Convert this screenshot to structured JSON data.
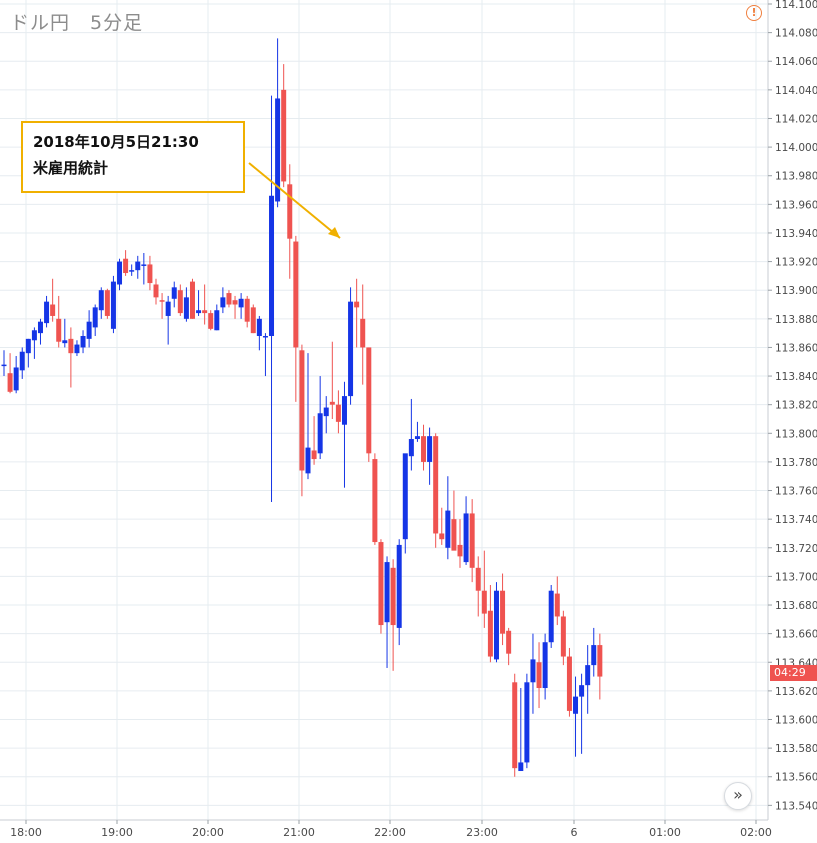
{
  "header": {
    "title": "ドル円　5分足"
  },
  "annotation": {
    "line1": "2018年10月5日21:30",
    "line2": "米雇用統計"
  },
  "price_tag": {
    "label": "04:29",
    "color": "#ef5350"
  },
  "icons": {
    "warning": "warning-circle-icon",
    "scroll": "double-chevron-right-icon"
  },
  "colors": {
    "up": "#1535e6",
    "down": "#ef5350",
    "grid": "#e6ecf0",
    "callout": "#f0b000"
  },
  "chart_data": {
    "type": "candlestick",
    "title": "ドル円　5分足",
    "y_ticks": [
      "114.100",
      "114.080",
      "114.060",
      "114.040",
      "114.020",
      "114.000",
      "113.980",
      "113.960",
      "113.940",
      "113.920",
      "113.900",
      "113.880",
      "113.860",
      "113.840",
      "113.820",
      "113.800",
      "113.780",
      "113.760",
      "113.740",
      "113.720",
      "113.700",
      "113.680",
      "113.660",
      "113.640",
      "113.620",
      "113.600",
      "113.580",
      "113.560",
      "113.540"
    ],
    "x_ticks": [
      "18:00",
      "19:00",
      "20:00",
      "21:00",
      "22:00",
      "23:00",
      "6",
      "01:00",
      "02:00"
    ],
    "ylim": [
      113.532,
      114.1
    ],
    "grid": true,
    "candles": [
      {
        "t": "17:50",
        "o": 113.848,
        "h": 113.858,
        "l": 113.84,
        "c": 113.848
      },
      {
        "t": "17:55",
        "o": 113.842,
        "h": 113.856,
        "l": 113.828,
        "c": 113.829
      },
      {
        "t": "18:00",
        "o": 113.83,
        "h": 113.854,
        "l": 113.828,
        "c": 113.846
      },
      {
        "t": "18:05",
        "o": 113.844,
        "h": 113.86,
        "l": 113.838,
        "c": 113.857
      },
      {
        "t": "18:10",
        "o": 113.856,
        "h": 113.866,
        "l": 113.846,
        "c": 113.866
      },
      {
        "t": "18:15",
        "o": 113.865,
        "h": 113.874,
        "l": 113.852,
        "c": 113.872
      },
      {
        "t": "18:20",
        "o": 113.87,
        "h": 113.88,
        "l": 113.862,
        "c": 113.878
      },
      {
        "t": "18:25",
        "o": 113.877,
        "h": 113.896,
        "l": 113.874,
        "c": 113.892
      },
      {
        "t": "18:30",
        "o": 113.89,
        "h": 113.908,
        "l": 113.878,
        "c": 113.882
      },
      {
        "t": "18:35",
        "o": 113.88,
        "h": 113.896,
        "l": 113.86,
        "c": 113.864
      },
      {
        "t": "18:40",
        "o": 113.863,
        "h": 113.88,
        "l": 113.86,
        "c": 113.865
      },
      {
        "t": "18:45",
        "o": 113.866,
        "h": 113.874,
        "l": 113.832,
        "c": 113.856
      },
      {
        "t": "18:50",
        "o": 113.856,
        "h": 113.865,
        "l": 113.854,
        "c": 113.862
      },
      {
        "t": "18:55",
        "o": 113.86,
        "h": 113.872,
        "l": 113.856,
        "c": 113.868
      },
      {
        "t": "19:00",
        "o": 113.866,
        "h": 113.886,
        "l": 113.86,
        "c": 113.878
      },
      {
        "t": "19:05",
        "o": 113.874,
        "h": 113.89,
        "l": 113.868,
        "c": 113.888
      },
      {
        "t": "19:10",
        "o": 113.886,
        "h": 113.902,
        "l": 113.88,
        "c": 113.9
      },
      {
        "t": "19:15",
        "o": 113.9,
        "h": 113.901,
        "l": 113.88,
        "c": 113.882
      },
      {
        "t": "19:20",
        "o": 113.873,
        "h": 113.91,
        "l": 113.87,
        "c": 113.906
      },
      {
        "t": "19:25",
        "o": 113.904,
        "h": 113.922,
        "l": 113.9,
        "c": 113.92
      },
      {
        "t": "19:30",
        "o": 113.922,
        "h": 113.928,
        "l": 113.91,
        "c": 113.912
      },
      {
        "t": "19:35",
        "o": 113.914,
        "h": 113.918,
        "l": 113.91,
        "c": 113.914
      },
      {
        "t": "19:40",
        "o": 113.914,
        "h": 113.924,
        "l": 113.908,
        "c": 113.92
      },
      {
        "t": "19:45",
        "o": 113.918,
        "h": 113.926,
        "l": 113.904,
        "c": 113.918
      },
      {
        "t": "19:50",
        "o": 113.918,
        "h": 113.924,
        "l": 113.9,
        "c": 113.905
      },
      {
        "t": "19:55",
        "o": 113.904,
        "h": 113.908,
        "l": 113.89,
        "c": 113.895
      },
      {
        "t": "20:00",
        "o": 113.893,
        "h": 113.898,
        "l": 113.88,
        "c": 113.892
      },
      {
        "t": "20:05",
        "o": 113.882,
        "h": 113.896,
        "l": 113.862,
        "c": 113.892
      },
      {
        "t": "20:10",
        "o": 113.894,
        "h": 113.906,
        "l": 113.888,
        "c": 113.902
      },
      {
        "t": "20:15",
        "o": 113.9,
        "h": 113.904,
        "l": 113.882,
        "c": 113.884
      },
      {
        "t": "20:20",
        "o": 113.88,
        "h": 113.902,
        "l": 113.878,
        "c": 113.895
      },
      {
        "t": "20:25",
        "o": 113.906,
        "h": 113.908,
        "l": 113.88,
        "c": 113.88
      },
      {
        "t": "20:30",
        "o": 113.884,
        "h": 113.9,
        "l": 113.882,
        "c": 113.886
      },
      {
        "t": "20:35",
        "o": 113.886,
        "h": 113.904,
        "l": 113.876,
        "c": 113.884
      },
      {
        "t": "20:40",
        "o": 113.884,
        "h": 113.886,
        "l": 113.872,
        "c": 113.873
      },
      {
        "t": "20:45",
        "o": 113.872,
        "h": 113.89,
        "l": 113.872,
        "c": 113.886
      },
      {
        "t": "20:50",
        "o": 113.888,
        "h": 113.902,
        "l": 113.884,
        "c": 113.895
      },
      {
        "t": "20:55",
        "o": 113.898,
        "h": 113.9,
        "l": 113.888,
        "c": 113.89
      },
      {
        "t": "21:00",
        "o": 113.893,
        "h": 113.896,
        "l": 113.88,
        "c": 113.89
      },
      {
        "t": "21:05",
        "o": 113.888,
        "h": 113.898,
        "l": 113.88,
        "c": 113.894
      },
      {
        "t": "21:10",
        "o": 113.894,
        "h": 113.896,
        "l": 113.874,
        "c": 113.878
      },
      {
        "t": "21:15",
        "o": 113.888,
        "h": 113.89,
        "l": 113.87,
        "c": 113.87
      },
      {
        "t": "21:20",
        "o": 113.868,
        "h": 113.882,
        "l": 113.858,
        "c": 113.88
      },
      {
        "t": "21:25",
        "o": 113.868,
        "h": 113.87,
        "l": 113.84,
        "c": 113.868
      },
      {
        "t": "21:30",
        "o": 113.868,
        "h": 114.036,
        "l": 113.752,
        "c": 113.966
      },
      {
        "t": "21:35",
        "o": 113.962,
        "h": 114.076,
        "l": 113.958,
        "c": 114.034
      },
      {
        "t": "21:40",
        "o": 114.04,
        "h": 114.058,
        "l": 113.972,
        "c": 113.976
      },
      {
        "t": "21:45",
        "o": 113.974,
        "h": 113.988,
        "l": 113.908,
        "c": 113.936
      },
      {
        "t": "21:50",
        "o": 113.934,
        "h": 113.938,
        "l": 113.822,
        "c": 113.86
      },
      {
        "t": "21:55",
        "o": 113.858,
        "h": 113.862,
        "l": 113.756,
        "c": 113.774
      },
      {
        "t": "22:00",
        "o": 113.772,
        "h": 113.856,
        "l": 113.768,
        "c": 113.79
      },
      {
        "t": "22:05",
        "o": 113.788,
        "h": 113.812,
        "l": 113.778,
        "c": 113.782
      },
      {
        "t": "22:10",
        "o": 113.786,
        "h": 113.84,
        "l": 113.782,
        "c": 113.814
      },
      {
        "t": "22:15",
        "o": 113.812,
        "h": 113.826,
        "l": 113.8,
        "c": 113.818
      },
      {
        "t": "22:20",
        "o": 113.822,
        "h": 113.864,
        "l": 113.81,
        "c": 113.82
      },
      {
        "t": "22:25",
        "o": 113.82,
        "h": 113.83,
        "l": 113.8,
        "c": 113.808
      },
      {
        "t": "22:30",
        "o": 113.806,
        "h": 113.836,
        "l": 113.762,
        "c": 113.826
      },
      {
        "t": "22:35",
        "o": 113.826,
        "h": 113.902,
        "l": 113.82,
        "c": 113.892
      },
      {
        "t": "22:40",
        "o": 113.892,
        "h": 113.908,
        "l": 113.86,
        "c": 113.888
      },
      {
        "t": "22:45",
        "o": 113.88,
        "h": 113.904,
        "l": 113.834,
        "c": 113.86
      },
      {
        "t": "22:50",
        "o": 113.86,
        "h": 113.86,
        "l": 113.78,
        "c": 113.786
      },
      {
        "t": "22:55",
        "o": 113.782,
        "h": 113.786,
        "l": 113.722,
        "c": 113.724
      },
      {
        "t": "23:00",
        "o": 113.724,
        "h": 113.726,
        "l": 113.66,
        "c": 113.666
      },
      {
        "t": "23:05",
        "o": 113.668,
        "h": 113.714,
        "l": 113.636,
        "c": 113.71
      },
      {
        "t": "23:10",
        "o": 113.706,
        "h": 113.712,
        "l": 113.634,
        "c": 113.666
      },
      {
        "t": "23:15",
        "o": 113.664,
        "h": 113.726,
        "l": 113.652,
        "c": 113.722
      },
      {
        "t": "23:20",
        "o": 113.726,
        "h": 113.784,
        "l": 113.716,
        "c": 113.786
      },
      {
        "t": "23:25",
        "o": 113.784,
        "h": 113.824,
        "l": 113.774,
        "c": 113.796
      },
      {
        "t": "23:30",
        "o": 113.796,
        "h": 113.808,
        "l": 113.794,
        "c": 113.798
      },
      {
        "t": "23:35",
        "o": 113.798,
        "h": 113.806,
        "l": 113.774,
        "c": 113.78
      },
      {
        "t": "23:40",
        "o": 113.78,
        "h": 113.804,
        "l": 113.764,
        "c": 113.798
      },
      {
        "t": "23:45",
        "o": 113.798,
        "h": 113.8,
        "l": 113.72,
        "c": 113.73
      },
      {
        "t": "23:50",
        "o": 113.73,
        "h": 113.748,
        "l": 113.722,
        "c": 113.726
      },
      {
        "t": "23:55",
        "o": 113.72,
        "h": 113.77,
        "l": 113.712,
        "c": 113.746
      },
      {
        "t": "00:00",
        "o": 113.74,
        "h": 113.76,
        "l": 113.72,
        "c": 113.718
      },
      {
        "t": "00:05",
        "o": 113.722,
        "h": 113.74,
        "l": 113.706,
        "c": 113.714
      },
      {
        "t": "00:10",
        "o": 113.71,
        "h": 113.756,
        "l": 113.708,
        "c": 113.744
      },
      {
        "t": "00:15",
        "o": 113.744,
        "h": 113.754,
        "l": 113.696,
        "c": 113.706
      },
      {
        "t": "00:20",
        "o": 113.706,
        "h": 113.714,
        "l": 113.672,
        "c": 113.69
      },
      {
        "t": "00:25",
        "o": 113.69,
        "h": 113.718,
        "l": 113.664,
        "c": 113.674
      },
      {
        "t": "00:30",
        "o": 113.676,
        "h": 113.694,
        "l": 113.64,
        "c": 113.644
      },
      {
        "t": "00:35",
        "o": 113.642,
        "h": 113.696,
        "l": 113.64,
        "c": 113.69
      },
      {
        "t": "00:40",
        "o": 113.69,
        "h": 113.702,
        "l": 113.652,
        "c": 113.66
      },
      {
        "t": "00:45",
        "o": 113.662,
        "h": 113.664,
        "l": 113.638,
        "c": 113.646
      },
      {
        "t": "00:50",
        "o": 113.626,
        "h": 113.632,
        "l": 113.56,
        "c": 113.566
      },
      {
        "t": "00:55",
        "o": 113.564,
        "h": 113.622,
        "l": 113.564,
        "c": 113.57
      },
      {
        "t": "01:00",
        "o": 113.57,
        "h": 113.632,
        "l": 113.566,
        "c": 113.626
      },
      {
        "t": "01:05",
        "o": 113.626,
        "h": 113.66,
        "l": 113.604,
        "c": 113.642
      },
      {
        "t": "01:10",
        "o": 113.64,
        "h": 113.654,
        "l": 113.608,
        "c": 113.622
      },
      {
        "t": "01:15",
        "o": 113.622,
        "h": 113.66,
        "l": 113.614,
        "c": 113.654
      },
      {
        "t": "01:20",
        "o": 113.654,
        "h": 113.694,
        "l": 113.65,
        "c": 113.69
      },
      {
        "t": "01:25",
        "o": 113.688,
        "h": 113.7,
        "l": 113.666,
        "c": 113.672
      },
      {
        "t": "01:30",
        "o": 113.672,
        "h": 113.676,
        "l": 113.638,
        "c": 113.644
      },
      {
        "t": "01:35",
        "o": 113.644,
        "h": 113.65,
        "l": 113.602,
        "c": 113.606
      },
      {
        "t": "01:40",
        "o": 113.604,
        "h": 113.63,
        "l": 113.574,
        "c": 113.616
      },
      {
        "t": "01:45",
        "o": 113.616,
        "h": 113.632,
        "l": 113.576,
        "c": 113.624
      },
      {
        "t": "01:50",
        "o": 113.624,
        "h": 113.652,
        "l": 113.604,
        "c": 113.638
      },
      {
        "t": "01:55",
        "o": 113.638,
        "h": 113.664,
        "l": 113.63,
        "c": 113.652
      },
      {
        "t": "02:00",
        "o": 113.652,
        "h": 113.66,
        "l": 113.614,
        "c": 113.63
      }
    ]
  }
}
